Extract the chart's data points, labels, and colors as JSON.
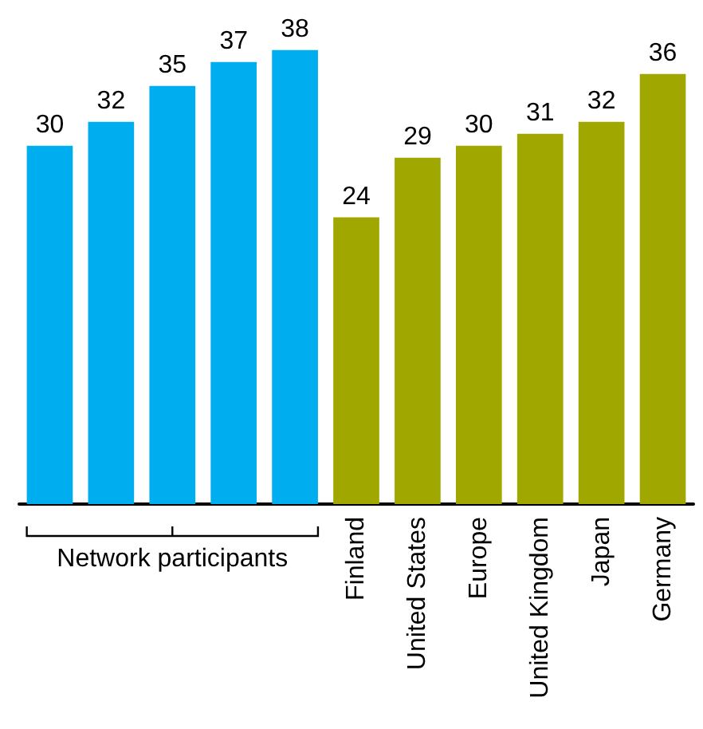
{
  "chart_data": {
    "type": "bar",
    "categories": [
      null,
      null,
      null,
      null,
      null,
      "Finland",
      "United States",
      "Europe",
      "United Kingdom",
      "Japan",
      "Germany"
    ],
    "values": [
      30,
      32,
      35,
      37,
      38,
      24,
      29,
      30,
      31,
      32,
      36
    ],
    "colors": [
      "#00aeef",
      "#00aeef",
      "#00aeef",
      "#00aeef",
      "#00aeef",
      "#a0a800",
      "#a0a800",
      "#a0a800",
      "#a0a800",
      "#a0a800",
      "#a0a800"
    ],
    "data_labels": true,
    "annotations": [
      "Network participants"
    ]
  }
}
